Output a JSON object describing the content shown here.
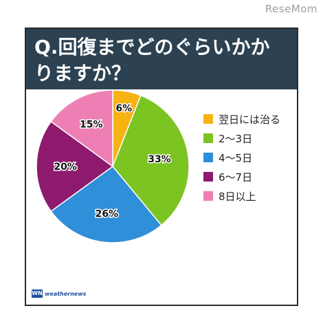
{
  "watermark": "ReseMom",
  "title_line1": "Q.回復までどのぐらいかか",
  "title_line2": "りますか？",
  "logo": {
    "mark": "WN",
    "text": "weathernews"
  },
  "colors": {
    "header_bg": "#2c4252",
    "slice_colors": [
      "#f7b214",
      "#7cc421",
      "#2f8fd8",
      "#8e1a6e",
      "#ee7fb4"
    ]
  },
  "chart_data": {
    "type": "pie",
    "categories": [
      "翌日には治る",
      "2～3日",
      "4～5日",
      "6～7日",
      "8日以上"
    ],
    "values": [
      6,
      33,
      26,
      20,
      15
    ],
    "value_labels": [
      "6%",
      "33%",
      "26%",
      "20%",
      "15%"
    ],
    "title": "Q.回復までどのぐらいかかりますか？",
    "legend_position": "right"
  }
}
